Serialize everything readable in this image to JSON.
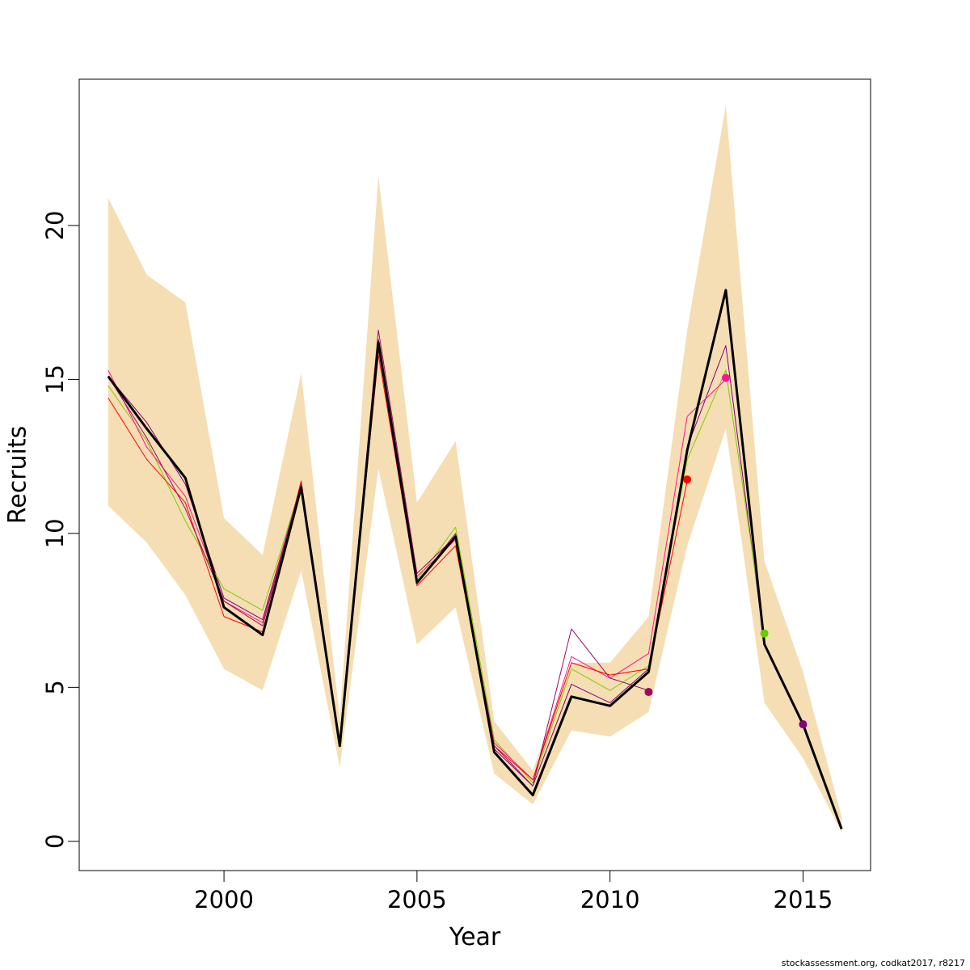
{
  "chart_data": {
    "type": "line",
    "xlabel": "Year",
    "ylabel": "Recruits",
    "xlim": [
      1996.25,
      2016.75
    ],
    "ylim": [
      -0.95,
      24.75
    ],
    "x_ticks": [
      2000,
      2005,
      2010,
      2015
    ],
    "y_ticks": [
      0,
      5,
      10,
      15,
      20
    ],
    "x_tick_labels": [
      "2000",
      "2005",
      "2010",
      "2015"
    ],
    "y_tick_labels": [
      "0",
      "5",
      "10",
      "15",
      "20"
    ],
    "grid": false,
    "legend": "none",
    "confidence_band": {
      "color": "#f5deb3",
      "x": [
        1997,
        1998,
        1999,
        2000,
        2001,
        2002,
        2003,
        2004,
        2005,
        2006,
        2007,
        2008,
        2009,
        2010,
        2011,
        2012,
        2013,
        2014,
        2015,
        2016
      ],
      "lower": [
        10.9,
        9.7,
        8.0,
        5.6,
        4.9,
        8.8,
        2.4,
        12.1,
        6.4,
        7.6,
        2.2,
        1.2,
        3.6,
        3.4,
        4.2,
        9.6,
        13.4,
        4.5,
        2.7,
        0.3
      ],
      "upper": [
        20.9,
        18.4,
        17.5,
        10.5,
        9.3,
        15.2,
        4.0,
        21.6,
        11.0,
        13.0,
        3.9,
        2.3,
        5.8,
        5.8,
        7.3,
        16.6,
        23.9,
        9.1,
        5.5,
        0.8
      ]
    },
    "series": [
      {
        "color": "#000000",
        "x": [
          1997,
          1998,
          1999,
          2000,
          2001,
          2002,
          2003,
          2004,
          2005,
          2006,
          2007,
          2008,
          2009,
          2010,
          2011,
          2012,
          2013,
          2014,
          2015,
          2016
        ],
        "values": [
          15.1,
          13.4,
          11.8,
          7.6,
          6.7,
          11.5,
          3.1,
          16.2,
          8.4,
          9.9,
          2.9,
          1.5,
          4.7,
          4.4,
          5.5,
          12.7,
          17.9,
          6.4,
          3.8,
          0.4
        ]
      },
      {
        "color": "#800080",
        "x": [
          1997,
          1998,
          1999,
          2000,
          2001,
          2002,
          2003,
          2004,
          2005,
          2006,
          2007,
          2008,
          2009,
          2010,
          2011,
          2012,
          2013,
          2014,
          2015
        ],
        "values": [
          15.1,
          13.6,
          11.6,
          7.9,
          7.2,
          11.6,
          3.2,
          16.3,
          8.4,
          10.0,
          3.0,
          1.8,
          5.1,
          4.5,
          5.6,
          12.8,
          16.1,
          6.4,
          3.8
        ]
      },
      {
        "color": "#7ccd00",
        "x": [
          1997,
          1998,
          1999,
          2000,
          2001,
          2002,
          2003,
          2004,
          2005,
          2006,
          2007,
          2008,
          2009,
          2010,
          2011,
          2012,
          2013,
          2014
        ],
        "values": [
          14.8,
          13.0,
          10.4,
          8.2,
          7.5,
          11.6,
          3.2,
          16.0,
          8.5,
          10.2,
          3.3,
          1.9,
          5.6,
          4.9,
          5.7,
          12.4,
          15.3,
          6.7
        ]
      },
      {
        "color": "#ff1493",
        "x": [
          1997,
          1998,
          1999,
          2000,
          2001,
          2002,
          2003,
          2004,
          2005,
          2006,
          2007,
          2008,
          2009,
          2010,
          2011,
          2012,
          2013
        ],
        "values": [
          15.3,
          12.8,
          11.2,
          7.8,
          7.1,
          11.6,
          3.2,
          16.0,
          8.6,
          9.8,
          3.2,
          2.0,
          6.0,
          5.3,
          6.1,
          13.8,
          15.0
        ]
      },
      {
        "color": "#ff0000",
        "x": [
          1997,
          1998,
          1999,
          2000,
          2001,
          2002,
          2003,
          2004,
          2005,
          2006,
          2007,
          2008,
          2009,
          2010,
          2011,
          2012
        ],
        "values": [
          14.4,
          12.4,
          11.0,
          7.3,
          6.8,
          11.7,
          3.2,
          15.8,
          8.3,
          9.6,
          3.1,
          2.0,
          5.8,
          5.4,
          5.6,
          11.7
        ]
      },
      {
        "color": "#9b0a5f",
        "x": [
          1997,
          1998,
          1999,
          2000,
          2001,
          2002,
          2003,
          2004,
          2005,
          2006,
          2007,
          2008,
          2009,
          2010,
          2011
        ],
        "values": [
          15.1,
          13.1,
          10.8,
          7.8,
          7.0,
          11.6,
          3.2,
          16.6,
          8.7,
          9.9,
          3.1,
          1.8,
          6.9,
          5.3,
          4.9
        ]
      }
    ],
    "end_points": [
      {
        "x": 2011,
        "y": 4.85,
        "color": "#9b0a5f"
      },
      {
        "x": 2012,
        "y": 11.75,
        "color": "#ff0000"
      },
      {
        "x": 2013,
        "y": 15.05,
        "color": "#ff1493"
      },
      {
        "x": 2014,
        "y": 6.75,
        "color": "#66cc00"
      },
      {
        "x": 2015,
        "y": 3.8,
        "color": "#800080"
      }
    ]
  },
  "credit": "stockassessment.org, codkat2017, r8217"
}
